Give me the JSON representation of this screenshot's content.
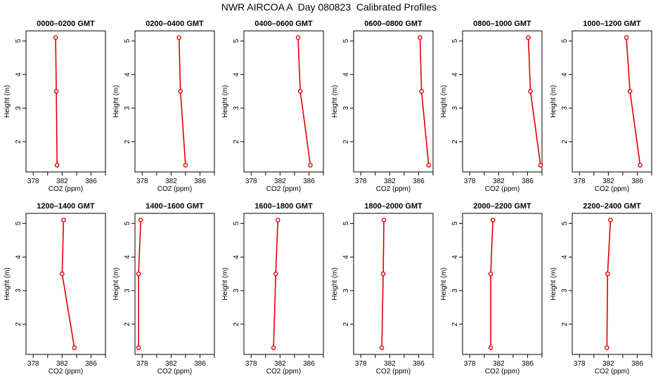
{
  "title": "NWR AIRCOA A  Day 080823  Calibrated Profiles",
  "colors": {
    "series": "#dd0000",
    "frame": "#000000"
  },
  "chart_data": [
    {
      "type": "line",
      "title": "0000–0200 GMT",
      "xlabel": "CO2 (ppm)",
      "ylabel": "Height (m)",
      "xlim": [
        377,
        388
      ],
      "ylim": [
        1.1,
        5.3
      ],
      "xticks": [
        "378",
        "382",
        "386"
      ],
      "yticks": [
        "2",
        "3",
        "4",
        "5"
      ],
      "series": [
        {
          "x": [
            381.3,
            381.2,
            381.1
          ],
          "y": [
            1.3,
            3.5,
            5.1
          ]
        }
      ]
    },
    {
      "type": "line",
      "title": "0200–0400 GMT",
      "xlabel": "CO2 (ppm)",
      "ylabel": "Height (m)",
      "xlim": [
        377,
        388
      ],
      "ylim": [
        1.1,
        5.3
      ],
      "xticks": [
        "378",
        "382",
        "386"
      ],
      "yticks": [
        "2",
        "3",
        "4",
        "5"
      ],
      "series": [
        {
          "x": [
            384.0,
            383.3,
            383.1
          ],
          "y": [
            1.3,
            3.5,
            5.1
          ]
        }
      ]
    },
    {
      "type": "line",
      "title": "0400–0600 GMT",
      "xlabel": "CO2 (ppm)",
      "ylabel": "Height (m)",
      "xlim": [
        377,
        388
      ],
      "ylim": [
        1.1,
        5.3
      ],
      "xticks": [
        "378",
        "382",
        "386"
      ],
      "yticks": [
        "2",
        "3",
        "4",
        "5"
      ],
      "series": [
        {
          "x": [
            386.2,
            384.8,
            384.5
          ],
          "y": [
            1.3,
            3.5,
            5.1
          ]
        }
      ]
    },
    {
      "type": "line",
      "title": "0600–0800 GMT",
      "xlabel": "CO2 (ppm)",
      "ylabel": "Height (m)",
      "xlim": [
        377,
        388
      ],
      "ylim": [
        1.1,
        5.3
      ],
      "xticks": [
        "378",
        "382",
        "386"
      ],
      "yticks": [
        "2",
        "3",
        "4",
        "5"
      ],
      "series": [
        {
          "x": [
            387.4,
            386.4,
            386.2
          ],
          "y": [
            1.3,
            3.5,
            5.1
          ]
        }
      ]
    },
    {
      "type": "line",
      "title": "0800–1000 GMT",
      "xlabel": "CO2 (ppm)",
      "ylabel": "Height (m)",
      "xlim": [
        377,
        388
      ],
      "ylim": [
        1.1,
        5.3
      ],
      "xticks": [
        "378",
        "382",
        "386"
      ],
      "yticks": [
        "2",
        "3",
        "4",
        "5"
      ],
      "series": [
        {
          "x": [
            387.8,
            386.4,
            386.1
          ],
          "y": [
            1.3,
            3.5,
            5.1
          ]
        }
      ]
    },
    {
      "type": "line",
      "title": "1000–1200 GMT",
      "xlabel": "CO2 (ppm)",
      "ylabel": "Height (m)",
      "xlim": [
        377,
        388
      ],
      "ylim": [
        1.1,
        5.3
      ],
      "xticks": [
        "378",
        "382",
        "386"
      ],
      "yticks": [
        "2",
        "3",
        "4",
        "5"
      ],
      "series": [
        {
          "x": [
            386.4,
            385.0,
            384.5
          ],
          "y": [
            1.3,
            3.5,
            5.1
          ]
        }
      ]
    },
    {
      "type": "line",
      "title": "1200–1400 GMT",
      "xlabel": "CO2 (ppm)",
      "ylabel": "Height (m)",
      "xlim": [
        377,
        388
      ],
      "ylim": [
        1.1,
        5.3
      ],
      "xticks": [
        "378",
        "382",
        "386"
      ],
      "yticks": [
        "2",
        "3",
        "4",
        "5"
      ],
      "series": [
        {
          "x": [
            383.7,
            382.0,
            382.2
          ],
          "y": [
            1.3,
            3.5,
            5.1
          ]
        }
      ]
    },
    {
      "type": "line",
      "title": "1400–1600 GMT",
      "xlabel": "CO2 (ppm)",
      "ylabel": "Height (m)",
      "xlim": [
        377,
        388
      ],
      "ylim": [
        1.1,
        5.3
      ],
      "xticks": [
        "378",
        "382",
        "386"
      ],
      "yticks": [
        "2",
        "3",
        "4",
        "5"
      ],
      "series": [
        {
          "x": [
            377.5,
            377.5,
            377.8
          ],
          "y": [
            1.3,
            3.5,
            5.1
          ]
        }
      ]
    },
    {
      "type": "line",
      "title": "1600–1800 GMT",
      "xlabel": "CO2 (ppm)",
      "ylabel": "Height (m)",
      "xlim": [
        377,
        388
      ],
      "ylim": [
        1.1,
        5.3
      ],
      "xticks": [
        "378",
        "382",
        "386"
      ],
      "yticks": [
        "2",
        "3",
        "4",
        "5"
      ],
      "series": [
        {
          "x": [
            381.1,
            381.4,
            381.7
          ],
          "y": [
            1.3,
            3.5,
            5.1
          ]
        }
      ]
    },
    {
      "type": "line",
      "title": "1800–2000 GMT",
      "xlabel": "CO2 (ppm)",
      "ylabel": "Height (m)",
      "xlim": [
        377,
        388
      ],
      "ylim": [
        1.1,
        5.3
      ],
      "xticks": [
        "378",
        "382",
        "386"
      ],
      "yticks": [
        "2",
        "3",
        "4",
        "5"
      ],
      "series": [
        {
          "x": [
            380.9,
            381.1,
            381.2
          ],
          "y": [
            1.3,
            3.5,
            5.1
          ]
        }
      ]
    },
    {
      "type": "line",
      "title": "2000–2200 GMT",
      "xlabel": "CO2 (ppm)",
      "ylabel": "Height (m)",
      "xlim": [
        377,
        388
      ],
      "ylim": [
        1.1,
        5.3
      ],
      "xticks": [
        "378",
        "382",
        "386"
      ],
      "yticks": [
        "2",
        "3",
        "4",
        "5"
      ],
      "series": [
        {
          "x": [
            380.9,
            380.9,
            381.2
          ],
          "y": [
            1.3,
            3.5,
            5.1
          ]
        }
      ]
    },
    {
      "type": "line",
      "title": "2200–2400 GMT",
      "xlabel": "CO2 (ppm)",
      "ylabel": "Height (m)",
      "xlim": [
        377,
        388
      ],
      "ylim": [
        1.1,
        5.3
      ],
      "xticks": [
        "378",
        "382",
        "386"
      ],
      "yticks": [
        "2",
        "3",
        "4",
        "5"
      ],
      "series": [
        {
          "x": [
            381.8,
            381.9,
            382.3
          ],
          "y": [
            1.3,
            3.5,
            5.1
          ]
        }
      ]
    }
  ]
}
